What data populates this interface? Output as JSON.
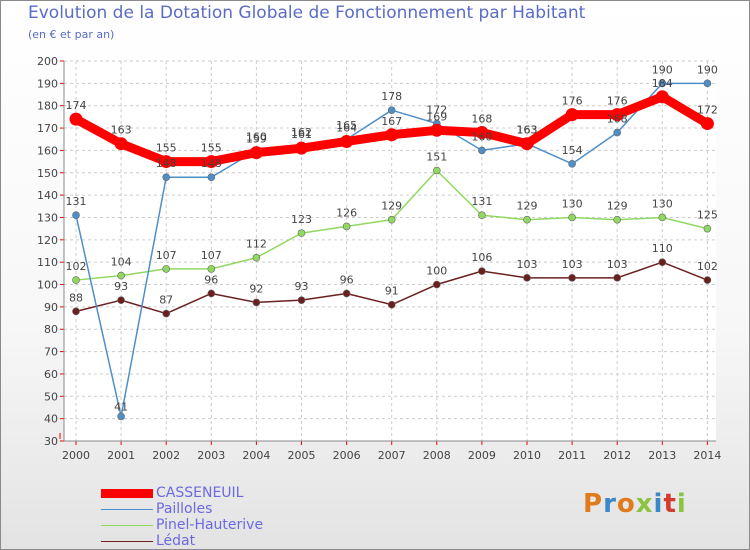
{
  "header": {
    "title": "Evolution de la Dotation Globale de Fonctionnement par Habitant",
    "subtitle": "(en € et par an)"
  },
  "logo": {
    "text": "Proxiti",
    "colors": [
      "#e07b1c",
      "#3a88c8",
      "#e07b1c",
      "#8bc43f",
      "#3a88c8",
      "#d23b2e",
      "#8bc43f"
    ]
  },
  "chart_data": {
    "type": "line",
    "title": "Evolution de la Dotation Globale de Fonctionnement par Habitant",
    "subtitle": "(en € et par an)",
    "xlabel": "",
    "ylabel": "",
    "ylim": [
      30,
      200
    ],
    "ytick_step": 10,
    "grid": true,
    "categories": [
      "2000",
      "2001",
      "2002",
      "2003",
      "2004",
      "2005",
      "2006",
      "2007",
      "2008",
      "2009",
      "2010",
      "2011",
      "2012",
      "2013",
      "2014"
    ],
    "series": [
      {
        "name": "CASSENEUIL",
        "color": "#ff0000",
        "values": [
          174,
          163,
          155,
          155,
          159,
          161,
          164,
          167,
          169,
          168,
          163,
          176,
          176,
          184,
          172
        ]
      },
      {
        "name": "Pailloles",
        "color": "#4f8fc8",
        "values": [
          131,
          41,
          148,
          148,
          160,
          162,
          165,
          178,
          172,
          160,
          163,
          154,
          168,
          190,
          190
        ]
      },
      {
        "name": "Pinel-Hauterive",
        "color": "#90d860",
        "values": [
          102,
          104,
          107,
          107,
          112,
          123,
          126,
          129,
          151,
          131,
          129,
          130,
          129,
          130,
          125
        ]
      },
      {
        "name": "Lédat",
        "color": "#6b2020",
        "values": [
          88,
          93,
          87,
          96,
          92,
          93,
          96,
          91,
          100,
          106,
          103,
          103,
          103,
          110,
          102
        ]
      }
    ]
  }
}
